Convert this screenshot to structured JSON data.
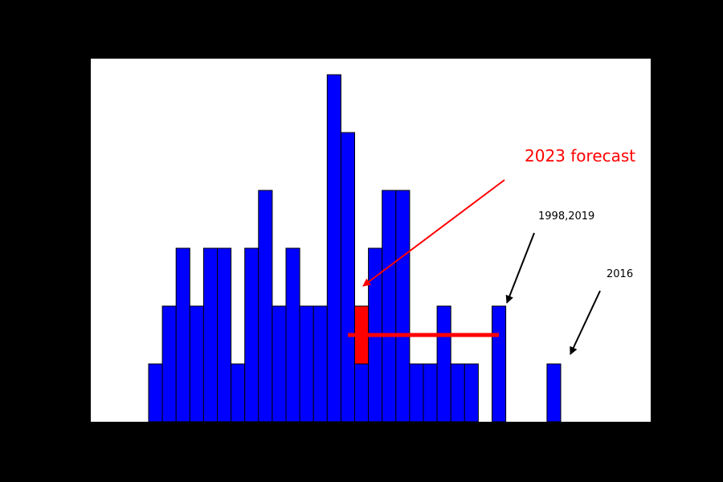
{
  "chart_data": {
    "type": "bar",
    "title": "",
    "xlabel": "",
    "ylabel": "",
    "ylim": [
      0,
      6.2
    ],
    "grid": false,
    "legend": "none",
    "series": [
      {
        "values": [
          1,
          2,
          3,
          2,
          3,
          3,
          1,
          3,
          4,
          2,
          3,
          2,
          2,
          6,
          5,
          1,
          3,
          4,
          4,
          1,
          1,
          2,
          1,
          1,
          0,
          2,
          0,
          0,
          0,
          1
        ],
        "color": "#0000ff"
      }
    ],
    "highlight": {
      "label": "2023 forecast",
      "bin": 15,
      "value": 2,
      "error_low": 1,
      "error_high": 2,
      "range_bins": [
        14.5,
        25.5
      ],
      "range_level": 1.5,
      "color": "#ff0000"
    },
    "annotations": [
      {
        "text": "2023 forecast",
        "color": "#ff0000",
        "points_to_bin": 15,
        "points_to_value": 2.3
      },
      {
        "text": "1998,2019",
        "color": "#000000",
        "points_to_bin": 25,
        "points_to_value": 2
      },
      {
        "text": "2016",
        "color": "#000000",
        "points_to_bin": 29,
        "points_to_value": 1
      }
    ],
    "colors": {
      "background": "#000000",
      "plot_background": "#ffffff",
      "bars": "#0000ff",
      "highlight": "#ff0000",
      "annotation": "#000000"
    }
  }
}
